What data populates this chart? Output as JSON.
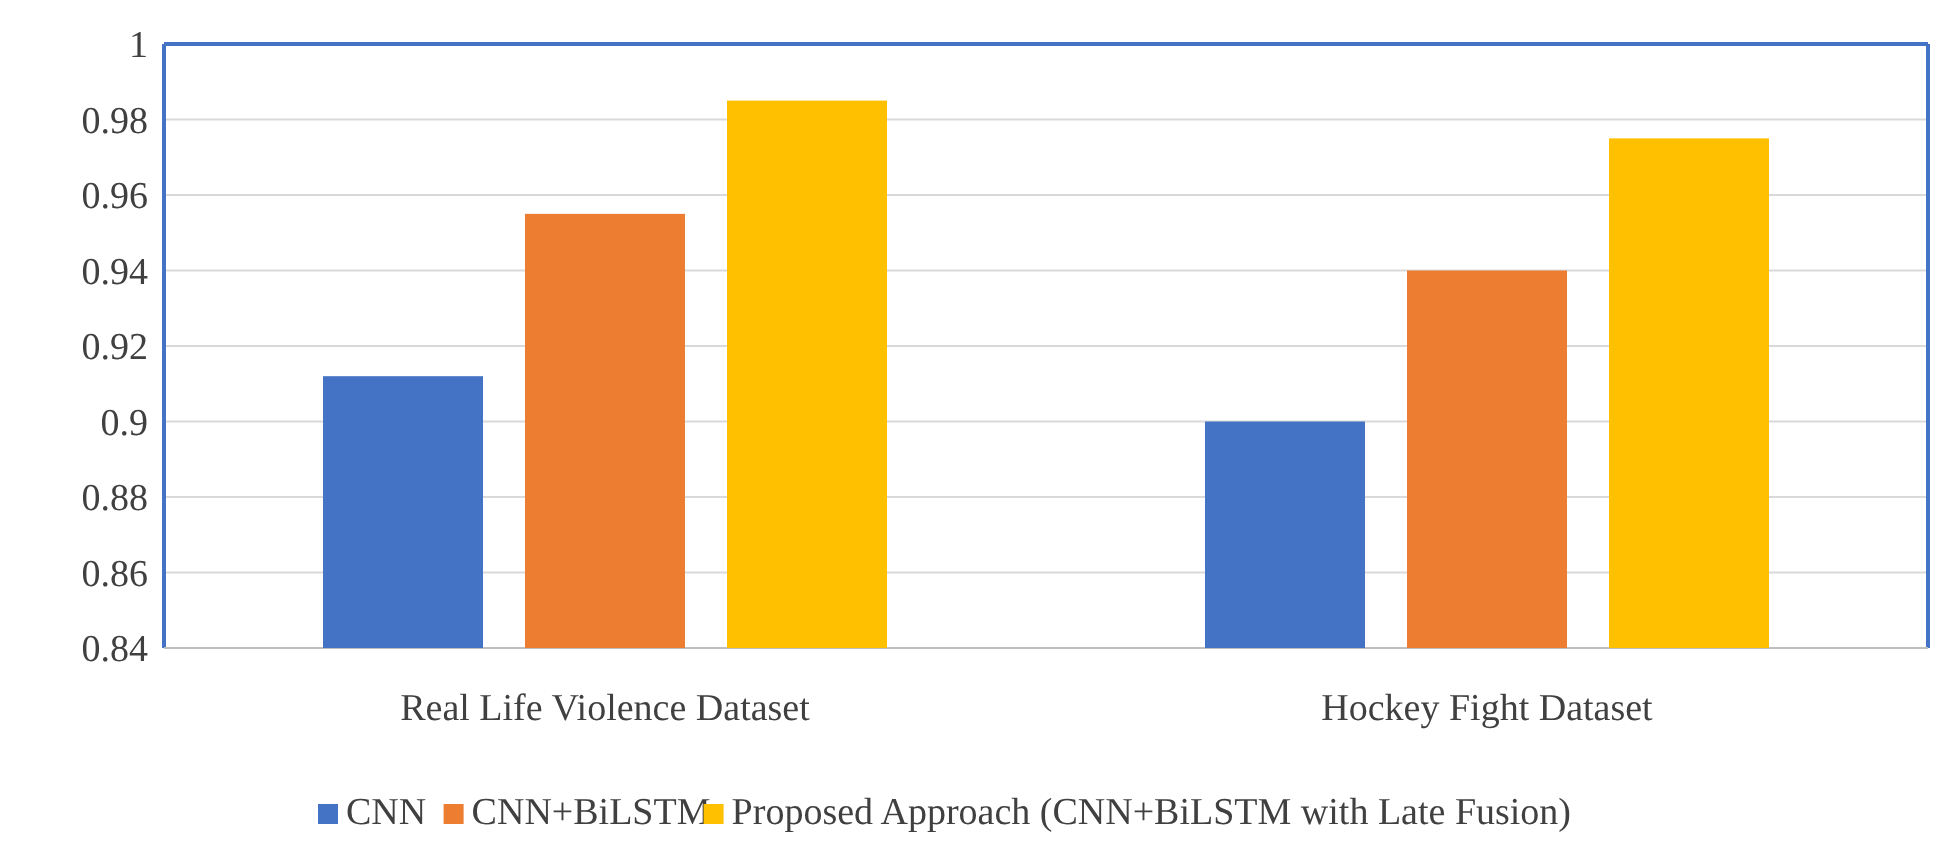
{
  "chart_data": {
    "type": "bar",
    "categories": [
      "Real Life Violence Dataset",
      "Hockey Fight Dataset"
    ],
    "series": [
      {
        "name": "CNN",
        "color": "#4472c4",
        "values": [
          0.912,
          0.9
        ]
      },
      {
        "name": "CNN+BiLSTM",
        "color": "#ed7d31",
        "values": [
          0.955,
          0.94
        ]
      },
      {
        "name": "Proposed Approach (CNN+BiLSTM with Late Fusion)",
        "color": "#ffc000",
        "values": [
          0.985,
          0.975
        ]
      }
    ],
    "ylim": [
      0.84,
      1
    ],
    "yticks": [
      0.84,
      0.86,
      0.88,
      0.9,
      0.92,
      0.94,
      0.96,
      0.98,
      1
    ],
    "grid": "y",
    "legend": "bottom"
  }
}
